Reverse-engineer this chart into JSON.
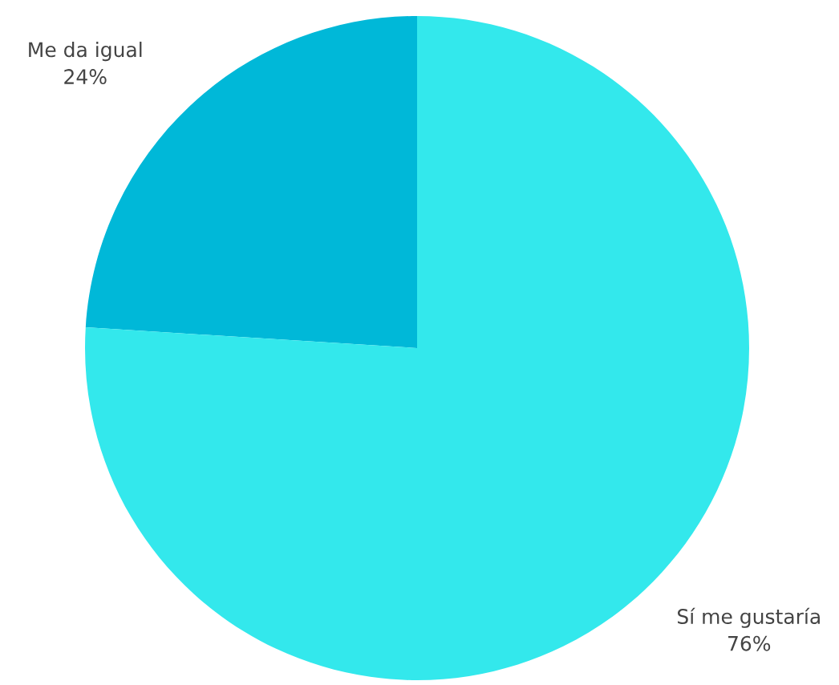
{
  "chart_data": {
    "type": "pie",
    "categories": [
      "Me da igual",
      "Sí me gustaría"
    ],
    "values": [
      24,
      76
    ],
    "colors": [
      "#00b8d8",
      "#33e8ec"
    ],
    "value_labels": [
      "24%",
      "76%"
    ]
  }
}
